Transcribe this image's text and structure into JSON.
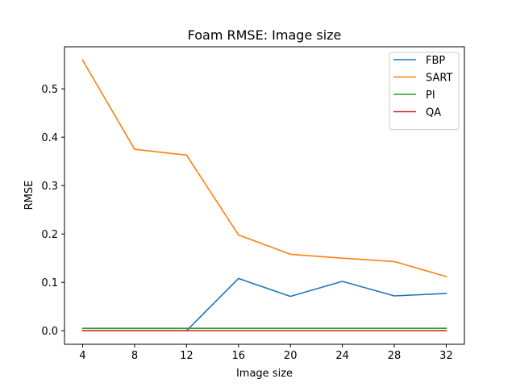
{
  "chart_data": {
    "type": "line",
    "title": "Foam RMSE: Image size",
    "xlabel": "Image size",
    "ylabel": "RMSE",
    "x": [
      4,
      8,
      12,
      16,
      20,
      24,
      28,
      32
    ],
    "xticks": [
      4,
      8,
      12,
      16,
      20,
      24,
      28,
      32
    ],
    "yticks": [
      0.0,
      0.1,
      0.2,
      0.3,
      0.4,
      0.5
    ],
    "xlim": [
      2.6,
      33.4
    ],
    "ylim": [
      -0.028,
      0.587
    ],
    "grid": false,
    "legend_position": "top-right",
    "series": [
      {
        "name": "FBP",
        "color": "#1f77b4",
        "values": [
          0.0,
          0.0,
          0.0,
          0.108,
          0.071,
          0.102,
          0.072,
          0.077
        ]
      },
      {
        "name": "SART",
        "color": "#ff7f0e",
        "values": [
          0.559,
          0.375,
          0.363,
          0.198,
          0.158,
          0.15,
          0.143,
          0.112
        ]
      },
      {
        "name": "PI",
        "color": "#2ca02c",
        "values": [
          0.005,
          0.005,
          0.005,
          0.005,
          0.005,
          0.005,
          0.005,
          0.005
        ]
      },
      {
        "name": "QA",
        "color": "#d62728",
        "values": [
          0.0,
          0.0,
          0.0,
          0.0,
          0.0,
          0.0,
          0.0,
          0.0
        ]
      }
    ]
  }
}
